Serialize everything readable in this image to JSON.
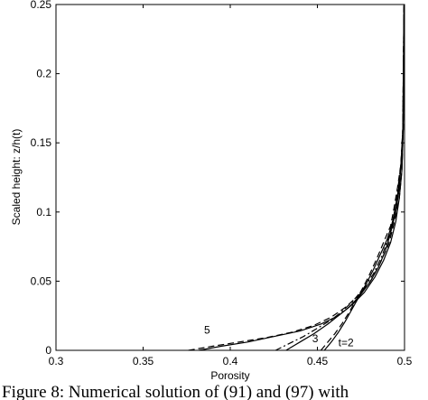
{
  "chart_data": {
    "type": "line",
    "title": "",
    "xlabel": "Porosity",
    "ylabel": "Scaled height: z/h(t)",
    "xlim": [
      0.3,
      0.5
    ],
    "ylim": [
      0,
      0.25
    ],
    "x_ticks": [
      0.3,
      0.35,
      0.4,
      0.45,
      0.5
    ],
    "x_tick_labels": [
      "0.3",
      "0.35",
      "0.4",
      "0.45",
      "0.5"
    ],
    "y_ticks": [
      0,
      0.05,
      0.1,
      0.15,
      0.2,
      0.25
    ],
    "y_tick_labels": [
      "0",
      "0.05",
      "0.1",
      "0.15",
      "0.2",
      "0.25"
    ],
    "grid": false,
    "legend": "none",
    "series": [
      {
        "label": "t=2",
        "label_at": [
          0.462,
          0.001
        ],
        "style": "solid",
        "x": [
          0.454,
          0.458,
          0.462,
          0.466,
          0.47,
          0.474,
          0.478,
          0.482,
          0.486,
          0.49,
          0.493,
          0.495,
          0.497,
          0.498,
          0.499,
          0.4995,
          0.4998
        ],
        "y": [
          0.0,
          0.006,
          0.013,
          0.021,
          0.03,
          0.039,
          0.048,
          0.058,
          0.069,
          0.08,
          0.092,
          0.105,
          0.12,
          0.135,
          0.155,
          0.18,
          0.25
        ]
      },
      {
        "label": "t=2",
        "style": "dashed",
        "x": [
          0.452,
          0.456,
          0.46,
          0.464,
          0.468,
          0.472,
          0.476,
          0.48,
          0.484,
          0.488,
          0.492,
          0.494,
          0.496,
          0.498,
          0.499,
          0.4997
        ],
        "y": [
          0.0,
          0.006,
          0.012,
          0.019,
          0.027,
          0.036,
          0.045,
          0.055,
          0.066,
          0.078,
          0.09,
          0.103,
          0.118,
          0.135,
          0.16,
          0.25
        ]
      },
      {
        "label": "3",
        "label_at": [
          0.447,
          0.004
        ],
        "style": "solid",
        "x": [
          0.432,
          0.44,
          0.448,
          0.456,
          0.462,
          0.468,
          0.474,
          0.48,
          0.485,
          0.489,
          0.492,
          0.495,
          0.497,
          0.498,
          0.499,
          0.4997
        ],
        "y": [
          0.0,
          0.006,
          0.012,
          0.019,
          0.025,
          0.031,
          0.039,
          0.049,
          0.06,
          0.072,
          0.085,
          0.1,
          0.117,
          0.135,
          0.16,
          0.25
        ]
      },
      {
        "label": "3",
        "style": "dashdot",
        "x": [
          0.426,
          0.434,
          0.442,
          0.45,
          0.458,
          0.464,
          0.47,
          0.476,
          0.482,
          0.487,
          0.491,
          0.494,
          0.496,
          0.498,
          0.499,
          0.4997
        ],
        "y": [
          0.0,
          0.005,
          0.01,
          0.016,
          0.022,
          0.028,
          0.035,
          0.044,
          0.055,
          0.068,
          0.082,
          0.098,
          0.115,
          0.135,
          0.16,
          0.25
        ]
      },
      {
        "label": "5",
        "label_at": [
          0.385,
          0.01
        ],
        "style": "solid",
        "x": [
          0.382,
          0.395,
          0.41,
          0.425,
          0.44,
          0.452,
          0.462,
          0.47,
          0.477,
          0.483,
          0.488,
          0.492,
          0.495,
          0.497,
          0.4985,
          0.4993,
          0.4998
        ],
        "y": [
          0.0,
          0.003,
          0.006,
          0.01,
          0.014,
          0.019,
          0.025,
          0.033,
          0.042,
          0.053,
          0.065,
          0.078,
          0.093,
          0.11,
          0.13,
          0.16,
          0.25
        ]
      },
      {
        "label": "5",
        "style": "dashed",
        "x": [
          0.376,
          0.39,
          0.405,
          0.42,
          0.435,
          0.448,
          0.458,
          0.466,
          0.474,
          0.481,
          0.486,
          0.491,
          0.494,
          0.497,
          0.4985,
          0.4993,
          0.4998
        ],
        "y": [
          0.0,
          0.003,
          0.006,
          0.009,
          0.013,
          0.018,
          0.024,
          0.031,
          0.04,
          0.051,
          0.063,
          0.077,
          0.092,
          0.11,
          0.13,
          0.16,
          0.25
        ]
      }
    ]
  },
  "caption": "Figure 8: Numerical solution of (91) and (97) with"
}
